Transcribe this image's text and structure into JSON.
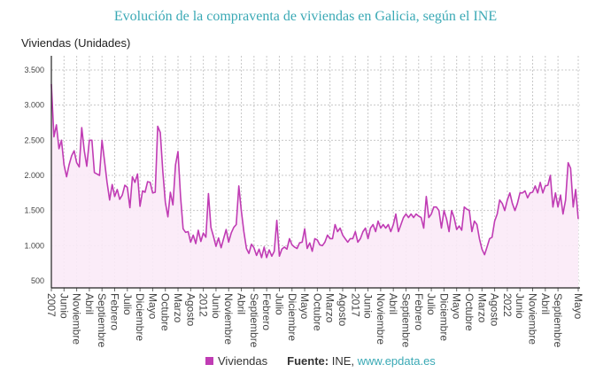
{
  "chart_data": {
    "type": "area",
    "title": "Evolución de la compraventa de viviendas en Galicia, según el INE",
    "ylabel": "Viviendas (Unidades)",
    "xlabel": "",
    "ylim": [
      500,
      3500
    ],
    "yticks": [
      "500",
      "1.000",
      "1.500",
      "2.000",
      "2.500",
      "3.000",
      "3.500"
    ],
    "ytick_values": [
      500,
      1000,
      1500,
      2000,
      2500,
      3000,
      3500
    ],
    "x_start": "2007-01",
    "x_end": "2024-05",
    "xtick_labels": [
      "2007",
      "Junio",
      "Noviembre",
      "Abril",
      "Septiembre",
      "Febrero",
      "Julio",
      "Diciembre",
      "Mayo",
      "Octubre",
      "Marzo",
      "Agosto",
      "2012",
      "Junio",
      "Noviembre",
      "Abril",
      "Septiembre",
      "Febrero",
      "Julio",
      "Diciembre",
      "Mayo",
      "Octubre",
      "Marzo",
      "Agosto",
      "2017",
      "Junio",
      "Noviembre",
      "Abril",
      "Septiembre",
      "Febrero",
      "Julio",
      "Diciembre",
      "Mayo",
      "Octubre",
      "Marzo",
      "Agosto",
      "2022",
      "Junio",
      "Noviembre",
      "Abril",
      "Septiembre",
      "Mayo"
    ],
    "grid": true,
    "legend_position": "bottom",
    "series": [
      {
        "name": "Viviendas",
        "color": "#c03cb4",
        "fill": "#fbeaf7",
        "values": [
          3300,
          2550,
          2720,
          2380,
          2500,
          2150,
          1980,
          2150,
          2280,
          2350,
          2180,
          2120,
          2680,
          2350,
          2130,
          2500,
          2500,
          2040,
          2020,
          2000,
          2500,
          2200,
          1900,
          1650,
          1870,
          1700,
          1800,
          1660,
          1720,
          1860,
          1830,
          1540,
          1980,
          1900,
          2020,
          1560,
          1780,
          1760,
          1910,
          1900,
          1750,
          1760,
          2700,
          2610,
          2050,
          1620,
          1410,
          1760,
          1580,
          2150,
          2340,
          1700,
          1240,
          1190,
          1200,
          1050,
          1150,
          1030,
          1220,
          1060,
          1180,
          1120,
          1740,
          1260,
          1130,
          990,
          1110,
          970,
          1100,
          1230,
          1050,
          1180,
          1260,
          1300,
          1850,
          1500,
          1200,
          960,
          890,
          1020,
          970,
          860,
          950,
          830,
          980,
          830,
          940,
          850,
          920,
          1360,
          850,
          950,
          980,
          950,
          1100,
          1010,
          980,
          960,
          1040,
          1050,
          1240,
          960,
          1040,
          920,
          1100,
          1080,
          1010,
          1000,
          1050,
          1150,
          1100,
          1100,
          1300,
          1200,
          1250,
          1150,
          1100,
          1050,
          1100,
          1100,
          1200,
          1050,
          1100,
          1200,
          1250,
          1100,
          1250,
          1300,
          1200,
          1350,
          1250,
          1300,
          1250,
          1300,
          1200,
          1300,
          1450,
          1200,
          1300,
          1400,
          1450,
          1400,
          1450,
          1400,
          1450,
          1420,
          1400,
          1250,
          1700,
          1400,
          1450,
          1550,
          1550,
          1500,
          1250,
          1500,
          1380,
          1200,
          1500,
          1400,
          1230,
          1280,
          1220,
          1550,
          1520,
          1500,
          1200,
          1350,
          1300,
          1100,
          950,
          870,
          980,
          1100,
          1120,
          1350,
          1450,
          1650,
          1600,
          1500,
          1650,
          1750,
          1600,
          1500,
          1600,
          1750,
          1750,
          1780,
          1680,
          1750,
          1760,
          1850,
          1750,
          1900,
          1750,
          1850,
          1860,
          2000,
          1550,
          1750,
          1550,
          1720,
          1450,
          1650,
          2180,
          2100,
          1550,
          1800,
          1380
        ]
      }
    ]
  },
  "legend": {
    "series_label": "Viviendas"
  },
  "source": {
    "label": "Fuente:",
    "text": "INE,",
    "link": "www.epdata.es"
  }
}
